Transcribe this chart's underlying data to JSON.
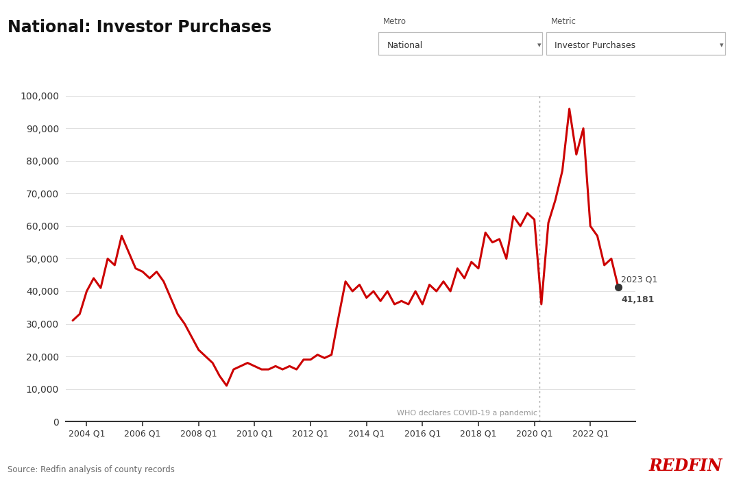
{
  "title": "National: Investor Purchases",
  "source": "Source: Redfin analysis of county records",
  "redfin_text": "REDFIN",
  "redfin_color": "#cc0000",
  "line_color": "#cc0000",
  "bg_color": "#ffffff",
  "annotation_label_line1": "2023 Q1",
  "annotation_label_line2": "41,181",
  "annotation_value": 41181,
  "covid_line_x": 2020.17,
  "covid_label": "WHO declares COVID-19 a pandemic",
  "yticks": [
    0,
    10000,
    20000,
    30000,
    40000,
    50000,
    60000,
    70000,
    80000,
    90000,
    100000
  ],
  "xtick_labels": [
    "2004 Q1",
    "2006 Q1",
    "2008 Q1",
    "2010 Q1",
    "2012 Q1",
    "2014 Q1",
    "2016 Q1",
    "2018 Q1",
    "2020 Q1",
    "2022 Q1"
  ],
  "xtick_positions": [
    2004.0,
    2006.0,
    2008.0,
    2010.0,
    2012.0,
    2014.0,
    2016.0,
    2018.0,
    2020.0,
    2022.0
  ],
  "data": [
    [
      2003.5,
      31000
    ],
    [
      2003.75,
      33000
    ],
    [
      2004.0,
      40000
    ],
    [
      2004.25,
      44000
    ],
    [
      2004.5,
      41000
    ],
    [
      2004.75,
      50000
    ],
    [
      2005.0,
      48000
    ],
    [
      2005.25,
      57000
    ],
    [
      2005.5,
      52000
    ],
    [
      2005.75,
      47000
    ],
    [
      2006.0,
      46000
    ],
    [
      2006.25,
      44000
    ],
    [
      2006.5,
      46000
    ],
    [
      2006.75,
      43000
    ],
    [
      2007.0,
      38000
    ],
    [
      2007.25,
      33000
    ],
    [
      2007.5,
      30000
    ],
    [
      2007.75,
      26000
    ],
    [
      2008.0,
      22000
    ],
    [
      2008.25,
      20000
    ],
    [
      2008.5,
      18000
    ],
    [
      2008.75,
      14000
    ],
    [
      2009.0,
      11000
    ],
    [
      2009.25,
      16000
    ],
    [
      2009.5,
      17000
    ],
    [
      2009.75,
      18000
    ],
    [
      2010.0,
      17000
    ],
    [
      2010.25,
      16000
    ],
    [
      2010.5,
      16000
    ],
    [
      2010.75,
      17000
    ],
    [
      2011.0,
      16000
    ],
    [
      2011.25,
      17000
    ],
    [
      2011.5,
      16000
    ],
    [
      2011.75,
      19000
    ],
    [
      2012.0,
      19000
    ],
    [
      2012.25,
      20500
    ],
    [
      2012.5,
      19500
    ],
    [
      2012.75,
      20500
    ],
    [
      2013.0,
      32000
    ],
    [
      2013.25,
      43000
    ],
    [
      2013.5,
      40000
    ],
    [
      2013.75,
      42000
    ],
    [
      2014.0,
      38000
    ],
    [
      2014.25,
      40000
    ],
    [
      2014.5,
      37000
    ],
    [
      2014.75,
      40000
    ],
    [
      2015.0,
      36000
    ],
    [
      2015.25,
      37000
    ],
    [
      2015.5,
      36000
    ],
    [
      2015.75,
      40000
    ],
    [
      2016.0,
      36000
    ],
    [
      2016.25,
      42000
    ],
    [
      2016.5,
      40000
    ],
    [
      2016.75,
      43000
    ],
    [
      2017.0,
      40000
    ],
    [
      2017.25,
      47000
    ],
    [
      2017.5,
      44000
    ],
    [
      2017.75,
      49000
    ],
    [
      2018.0,
      47000
    ],
    [
      2018.25,
      58000
    ],
    [
      2018.5,
      55000
    ],
    [
      2018.75,
      56000
    ],
    [
      2019.0,
      50000
    ],
    [
      2019.25,
      63000
    ],
    [
      2019.5,
      60000
    ],
    [
      2019.75,
      64000
    ],
    [
      2020.0,
      62000
    ],
    [
      2020.25,
      36000
    ],
    [
      2020.5,
      61000
    ],
    [
      2020.75,
      68000
    ],
    [
      2021.0,
      77000
    ],
    [
      2021.25,
      96000
    ],
    [
      2021.5,
      82000
    ],
    [
      2021.75,
      90000
    ],
    [
      2022.0,
      60000
    ],
    [
      2022.25,
      57000
    ],
    [
      2022.5,
      48000
    ],
    [
      2022.75,
      50000
    ],
    [
      2023.0,
      41181
    ]
  ]
}
